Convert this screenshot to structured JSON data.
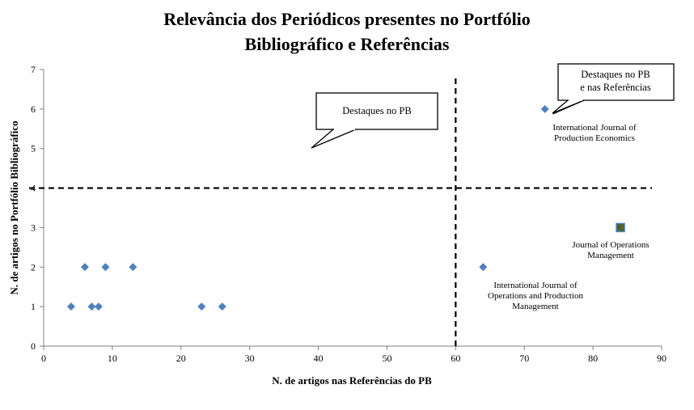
{
  "chart_data": {
    "type": "scatter",
    "title": [
      "Relevância dos Periódicos presentes no Portfólio",
      "Bibliográfico  e Referências"
    ],
    "xlabel": "N. de artigos nas Referências do PB",
    "ylabel": "N. de artigos no Portfólio Bibliográfico",
    "xlim": [
      0,
      90
    ],
    "ylim": [
      0,
      7
    ],
    "xticks": [
      0,
      10,
      20,
      30,
      40,
      50,
      60,
      70,
      80,
      90
    ],
    "yticks": [
      0,
      1,
      2,
      3,
      4,
      5,
      6,
      7
    ],
    "grid": false,
    "colors": {
      "diamond": "#4f81bd",
      "square": "#4f6228",
      "square_border": "#4f81bd"
    },
    "points": [
      {
        "x": 4,
        "y": 1,
        "marker": "diamond"
      },
      {
        "x": 6,
        "y": 2,
        "marker": "diamond"
      },
      {
        "x": 7,
        "y": 1,
        "marker": "diamond"
      },
      {
        "x": 8,
        "y": 1,
        "marker": "diamond"
      },
      {
        "x": 9,
        "y": 2,
        "marker": "diamond"
      },
      {
        "x": 13,
        "y": 2,
        "marker": "diamond"
      },
      {
        "x": 23,
        "y": 1,
        "marker": "diamond"
      },
      {
        "x": 26,
        "y": 1,
        "marker": "diamond"
      },
      {
        "x": 64,
        "y": 2,
        "marker": "diamond"
      },
      {
        "x": 73,
        "y": 6,
        "marker": "diamond"
      },
      {
        "x": 84,
        "y": 3,
        "marker": "square"
      }
    ],
    "reference_lines": [
      {
        "orientation": "vertical",
        "value": 60,
        "style": "dashed"
      },
      {
        "orientation": "horizontal",
        "value": 4,
        "style": "dashed"
      }
    ],
    "annotations": [
      {
        "point_index": 10,
        "lines": [
          "Journal of Operations",
          "Management"
        ]
      },
      {
        "point_index": 9,
        "lines": [
          "International Journal of",
          "Production Economics"
        ]
      },
      {
        "point_index": 8,
        "lines": [
          "International Journal of",
          "Operations and Production",
          "Management"
        ]
      }
    ],
    "callouts": [
      {
        "lines": [
          "Destaques no PB"
        ]
      },
      {
        "lines": [
          "Destaques no PB",
          "e nas Referências"
        ]
      }
    ]
  }
}
